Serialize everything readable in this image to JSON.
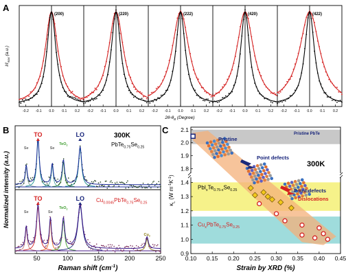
{
  "colors": {
    "black": "#000000",
    "red": "#d42020",
    "navy": "#16237a",
    "teal": "#108c8c",
    "green": "#3a9a2a",
    "orange": "#e0621a",
    "olive": "#8a7a10",
    "gray_band": "#c8c8c8",
    "yellow_band": "#f6f28a",
    "cyan_band": "#9fdcdc",
    "arrow": "#f4b07a",
    "gray_text": "#666666"
  },
  "chart_data": [
    {
      "panel": "A",
      "type": "line",
      "xlabel_parts": [
        "2θ-θ",
        "B",
        " (Degree)"
      ],
      "ylabel_parts": [
        "I/I",
        "max",
        " (a.u.)"
      ],
      "xlim": [
        -0.25,
        0.25
      ],
      "xticks": [
        "-0.2",
        "-0.1",
        "0.0",
        "0.1",
        "0.2"
      ],
      "peaks": [
        {
          "label": "(200)",
          "black_fwhm": 0.085,
          "red_fwhm": 0.12
        },
        {
          "label": "(220)",
          "black_fwhm": 0.09,
          "red_fwhm": 0.14
        },
        {
          "label": "(222)",
          "black_fwhm": 0.09,
          "red_fwhm": 0.16
        },
        {
          "label": "(420)",
          "black_fwhm": 0.085,
          "red_fwhm": 0.16
        },
        {
          "label": "(422)",
          "black_fwhm": 0.09,
          "red_fwhm": 0.19
        }
      ]
    },
    {
      "panel": "B",
      "type": "scatter",
      "xlabel": "Raman shift (cm",
      "xlabel_sup": "-1",
      "xlabel_end": ")",
      "ylabel": "Normalized intensity (a.u.)",
      "xlim": [
        15,
        250
      ],
      "xticks": [
        "50",
        "100",
        "150",
        "200",
        "250"
      ],
      "top": {
        "temp": "300K",
        "formula": [
          "PbTe",
          "0.75",
          "Se",
          "0.25"
        ],
        "peak_labels": [
          {
            "text": "TO",
            "x": 52,
            "color": "red"
          },
          {
            "text": "LO",
            "x": 120,
            "color": "navy"
          },
          {
            "text": "Se",
            "x": 33,
            "color": "gray_text"
          },
          {
            "text": "Se",
            "x": 75,
            "color": "gray_text"
          },
          {
            "text": "TeO",
            "sub": "2",
            "x": 93,
            "color": "green"
          }
        ],
        "peaks": [
          {
            "x": 33,
            "h": 0.35,
            "w": 4
          },
          {
            "x": 52,
            "h": 0.85,
            "w": 5
          },
          {
            "x": 75,
            "h": 0.38,
            "w": 4
          },
          {
            "x": 93,
            "h": 0.45,
            "w": 4.5
          },
          {
            "x": 120,
            "h": 0.7,
            "w": 6
          }
        ]
      },
      "bottom": {
        "formula": [
          "Cu",
          "0.0045",
          "PbTe",
          "0.75",
          "Se",
          "0.25"
        ],
        "peak_labels": [
          {
            "text": "TO",
            "x": 52,
            "color": "red"
          },
          {
            "text": "LO",
            "x": 120,
            "color": "navy"
          },
          {
            "text": "Se",
            "x": 33,
            "color": "gray_text"
          },
          {
            "text": "Se",
            "x": 72,
            "color": "gray_text"
          },
          {
            "text": "TeO",
            "sub": "2",
            "x": 93,
            "color": "green"
          },
          {
            "text": "Cu",
            "sub": "2",
            "x": 228,
            "color": "olive"
          }
        ],
        "peaks": [
          {
            "x": 33,
            "h": 0.4,
            "w": 4
          },
          {
            "x": 52,
            "h": 0.8,
            "w": 6
          },
          {
            "x": 72,
            "h": 0.55,
            "w": 4
          },
          {
            "x": 93,
            "h": 0.55,
            "w": 5
          },
          {
            "x": 120,
            "h": 0.82,
            "w": 9
          },
          {
            "x": 228,
            "h": 0.22,
            "w": 5
          }
        ]
      }
    },
    {
      "panel": "C",
      "type": "scatter",
      "xlabel": "Strain by XRD (%)",
      "ylabel_parts": [
        "κ",
        "L",
        " (W m",
        "-1",
        "K",
        "-1",
        ")"
      ],
      "xlim": [
        0.1,
        0.45
      ],
      "xticks": [
        "0.10",
        "0.15",
        "0.20",
        "0.25",
        "0.30",
        "0.35",
        "0.40",
        "0.45"
      ],
      "yticks_top": [
        "1.8",
        "1.9",
        "2.0",
        "2.1"
      ],
      "yticks_bottom": [
        "0.9",
        "1.0",
        "1.1",
        "1.2",
        "1.3",
        "1.4"
      ],
      "temp": "300K",
      "band_labels": {
        "pristine_band": "Pristine PbTe",
        "yellow": [
          "PbI",
          "x",
          "Te",
          "0.75-x",
          "Se",
          "0.25"
        ],
        "cyan": [
          "Cu",
          "x",
          "PbTe",
          "0.75",
          "Se",
          "0.25"
        ]
      },
      "annotations": {
        "pristine": "Pristine",
        "point_defects_1": "Point defects",
        "point_defects_2": "Point defects",
        "dislocations": "Dislocations"
      },
      "series": [
        {
          "group": "pristine",
          "marker": "square-navy",
          "points": [
            [
              0.105,
              2.05
            ]
          ]
        },
        {
          "group": "PbI",
          "marker": "diamond-yellow",
          "points": [
            [
              0.24,
              1.36
            ],
            [
              0.27,
              1.33
            ],
            [
              0.29,
              1.28
            ],
            [
              0.31,
              1.26
            ],
            [
              0.335,
              1.22
            ],
            [
              0.25,
              1.31
            ],
            [
              0.28,
              1.3
            ]
          ]
        },
        {
          "group": "Cu",
          "marker": "circle-red",
          "points": [
            [
              0.26,
              1.25
            ],
            [
              0.3,
              1.18
            ],
            [
              0.32,
              1.13
            ],
            [
              0.36,
              1.1
            ],
            [
              0.4,
              1.08
            ],
            [
              0.36,
              1.03
            ],
            [
              0.41,
              1.04
            ],
            [
              0.42,
              1.0
            ],
            [
              0.39,
              1.01
            ]
          ]
        }
      ]
    }
  ],
  "panel_letters": [
    "A",
    "B",
    "C"
  ]
}
